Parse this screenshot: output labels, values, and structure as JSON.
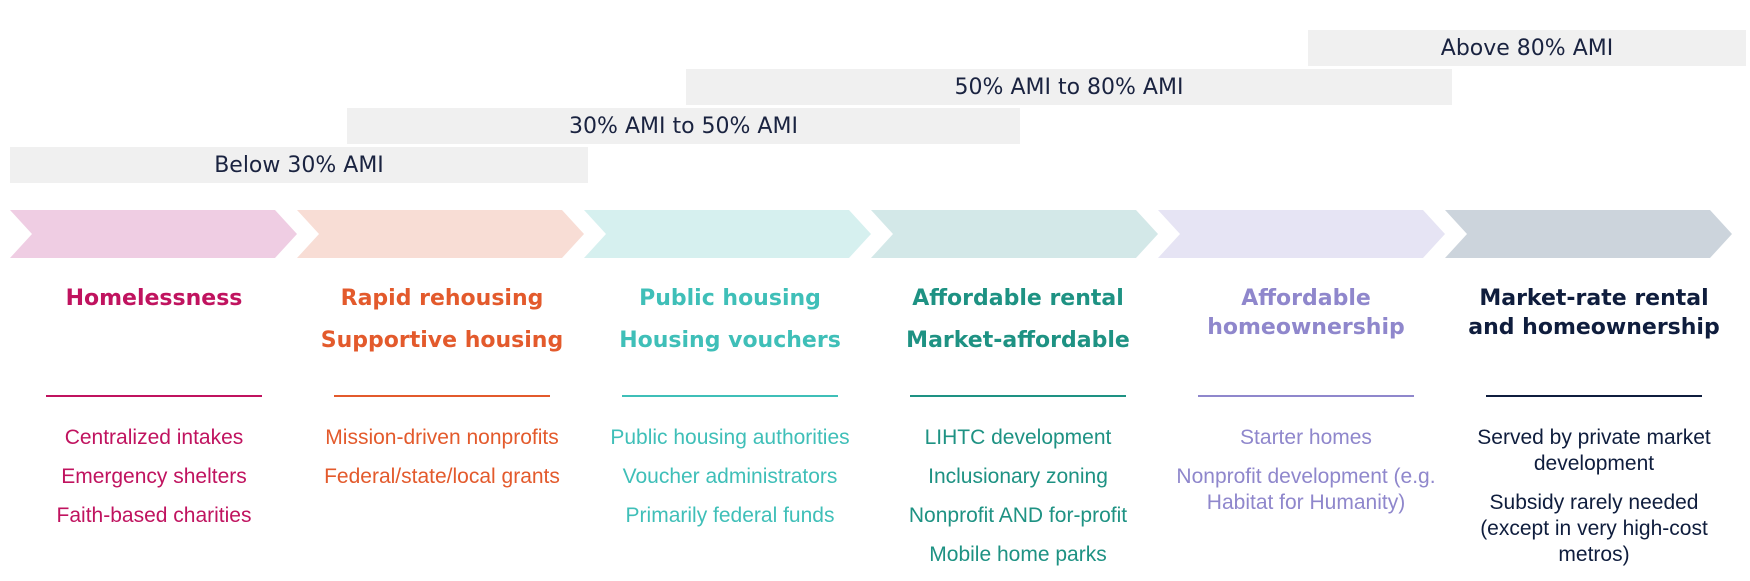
{
  "ami_bands": [
    {
      "label": "Above 80% AMI"
    },
    {
      "label": "50% AMI to 80% AMI"
    },
    {
      "label": "30% AMI to 50% AMI"
    },
    {
      "label": "Below 30% AMI"
    }
  ],
  "colors": {
    "arrows": [
      "#efcde3",
      "#f8ddd5",
      "#d6f0ef",
      "#d3e8e8",
      "#e6e4f4",
      "#ccd4dc"
    ],
    "band_bg": "#f0f0f0",
    "band_text": "#1a2340"
  },
  "columns": [
    {
      "title_lines": [
        "Homelessness"
      ],
      "color": "#c0135f",
      "items": [
        "Centralized intakes",
        "Emergency shelters",
        "Faith-based charities"
      ]
    },
    {
      "title_lines": [
        "Rapid rehousing",
        "Supportive housing"
      ],
      "color": "#e35a2c",
      "items": [
        "Mission-driven nonprofits",
        "Federal/state/local grants"
      ]
    },
    {
      "title_lines": [
        "Public housing",
        "Housing vouchers"
      ],
      "color": "#3fbfb8",
      "items": [
        "Public housing authorities",
        "Voucher administrators",
        "Primarily federal funds"
      ]
    },
    {
      "title_lines": [
        "Affordable rental",
        "Market-affordable"
      ],
      "color": "#1e9283",
      "items": [
        "LIHTC development",
        "Inclusionary zoning",
        "Nonprofit AND for-profit",
        "Mobile home parks"
      ]
    },
    {
      "title_lines": [
        "Affordable",
        "homeownership"
      ],
      "color": "#8f87cc",
      "items": [
        "Starter homes",
        "Nonprofit development (e.g. Habitat for Humanity)"
      ]
    },
    {
      "title_lines": [
        "Market-rate rental",
        "and homeownership"
      ],
      "color": "#0f1d3d",
      "items": [
        "Served by private market development",
        "Subsidy rarely needed (except in very high-cost metros)"
      ]
    }
  ]
}
